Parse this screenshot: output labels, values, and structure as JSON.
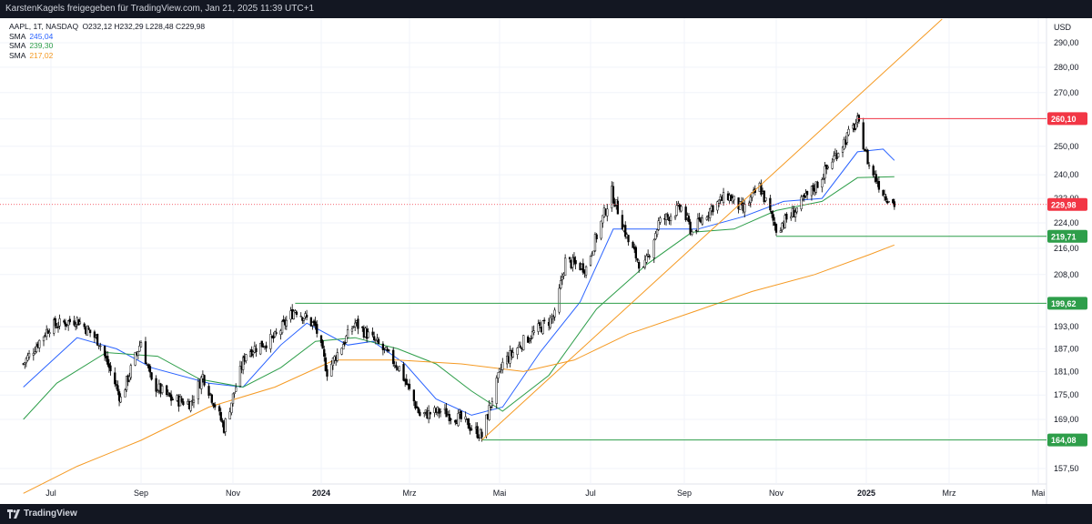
{
  "header": {
    "text": "KarstenKagels freigegeben für TradingView.com, Jan 21, 2025 11:39 UTC+1"
  },
  "footer": {
    "brand": "TradingView"
  },
  "legend": {
    "title": "AAPL, 1T, NASDAQ",
    "ohlc": "O232,12  H232,29  L228,48  C229,98",
    "sma": [
      {
        "label": "SMA",
        "value": "245,04",
        "color": "#2962ff"
      },
      {
        "label": "SMA",
        "value": "239,30",
        "color": "#2e9e4a"
      },
      {
        "label": "SMA",
        "value": "217,02",
        "color": "#f59a23"
      }
    ]
  },
  "chart_data": {
    "type": "candlestick",
    "currency_label": "USD",
    "y_scale": "log",
    "y_ticks": [
      "290,00",
      "280,00",
      "270,00",
      "260,00",
      "250,00",
      "240,00",
      "232,00",
      "224,00",
      "216,00",
      "208,00",
      "199,62",
      "193,00",
      "187,00",
      "181,00",
      "175,00",
      "169,00",
      "164,08",
      "157,50"
    ],
    "x_ticks": [
      "Jul",
      "Sep",
      "Nov",
      "2024",
      "Mrz",
      "Mai",
      "Jul",
      "Sep",
      "Nov",
      "2025",
      "Mrz",
      "Mai"
    ],
    "x_dates": [
      "2023-07-01",
      "2023-09-01",
      "2023-11-01",
      "2024-01-01",
      "2024-03-01",
      "2024-05-01",
      "2024-07-01",
      "2024-09-01",
      "2024-11-01",
      "2025-01-01",
      "2025-03-01",
      "2025-05-01"
    ],
    "current_price": {
      "label": "229,98",
      "value": 229.98,
      "color": "#f23645"
    },
    "horizontal_levels": [
      {
        "value": 260.1,
        "label": "260,10",
        "color": "#f23645",
        "start": "2024-12-26"
      },
      {
        "value": 219.71,
        "label": "219,71",
        "color": "#2e9e4a",
        "start": "2024-11-01"
      },
      {
        "value": 199.62,
        "label": "199,62",
        "color": "#2e9e4a",
        "start": "2023-12-14"
      },
      {
        "value": 164.08,
        "label": "164,08",
        "color": "#2e9e4a",
        "start": "2024-04-19"
      }
    ],
    "trend_line": {
      "color": "#f59a23",
      "from": {
        "date": "2024-04-19",
        "value": 164.08
      },
      "to": {
        "date": "2025-02-24",
        "value": 300
      }
    },
    "price_path": [
      [
        "2023-06-12",
        183
      ],
      [
        "2023-06-30",
        193
      ],
      [
        "2023-07-19",
        195
      ],
      [
        "2023-08-03",
        189
      ],
      [
        "2023-08-18",
        174
      ],
      [
        "2023-09-01",
        189
      ],
      [
        "2023-09-08",
        178
      ],
      [
        "2023-09-21",
        174
      ],
      [
        "2023-10-04",
        173
      ],
      [
        "2023-10-12",
        180
      ],
      [
        "2023-10-26",
        167
      ],
      [
        "2023-11-10",
        186
      ],
      [
        "2023-11-30",
        190
      ],
      [
        "2023-12-14",
        198
      ],
      [
        "2023-12-28",
        193
      ],
      [
        "2024-01-05",
        181
      ],
      [
        "2024-01-24",
        194
      ],
      [
        "2024-02-09",
        188
      ],
      [
        "2024-02-23",
        182
      ],
      [
        "2024-03-08",
        170
      ],
      [
        "2024-03-22",
        171
      ],
      [
        "2024-04-05",
        169
      ],
      [
        "2024-04-19",
        165
      ],
      [
        "2024-05-03",
        183
      ],
      [
        "2024-05-17",
        189
      ],
      [
        "2024-06-07",
        196
      ],
      [
        "2024-06-14",
        212
      ],
      [
        "2024-06-28",
        210
      ],
      [
        "2024-07-15",
        234
      ],
      [
        "2024-07-26",
        218
      ],
      [
        "2024-08-05",
        209
      ],
      [
        "2024-08-15",
        224
      ],
      [
        "2024-08-30",
        229
      ],
      [
        "2024-09-06",
        221
      ],
      [
        "2024-09-19",
        229
      ],
      [
        "2024-09-30",
        233
      ],
      [
        "2024-10-10",
        228
      ],
      [
        "2024-10-21",
        236
      ],
      [
        "2024-11-01",
        222
      ],
      [
        "2024-11-14",
        228
      ],
      [
        "2024-11-29",
        237
      ],
      [
        "2024-12-16",
        251
      ],
      [
        "2024-12-26",
        259
      ],
      [
        "2025-01-03",
        243
      ],
      [
        "2025-01-13",
        234
      ],
      [
        "2025-01-21",
        230
      ]
    ],
    "series": [
      {
        "name": "SMA",
        "value_label": "245,04",
        "color": "#2962ff",
        "points": [
          [
            "2023-06-12",
            177
          ],
          [
            "2023-07-19",
            190
          ],
          [
            "2023-08-15",
            187
          ],
          [
            "2023-09-08",
            182
          ],
          [
            "2023-10-16",
            178
          ],
          [
            "2023-11-08",
            177
          ],
          [
            "2023-12-04",
            188
          ],
          [
            "2023-12-22",
            194
          ],
          [
            "2024-01-19",
            188
          ],
          [
            "2024-02-05",
            189
          ],
          [
            "2024-02-27",
            183
          ],
          [
            "2024-03-19",
            174
          ],
          [
            "2024-04-12",
            170
          ],
          [
            "2024-05-03",
            172
          ],
          [
            "2024-05-28",
            186
          ],
          [
            "2024-06-24",
            200
          ],
          [
            "2024-07-16",
            222
          ],
          [
            "2024-08-12",
            222
          ],
          [
            "2024-09-10",
            222
          ],
          [
            "2024-10-10",
            226
          ],
          [
            "2024-11-06",
            231
          ],
          [
            "2024-12-02",
            232
          ],
          [
            "2024-12-26",
            248
          ],
          [
            "2025-01-13",
            249
          ],
          [
            "2025-01-21",
            245
          ]
        ]
      },
      {
        "name": "SMA",
        "value_label": "239,30",
        "color": "#2e9e4a",
        "points": [
          [
            "2023-06-12",
            169
          ],
          [
            "2023-07-05",
            178
          ],
          [
            "2023-08-08",
            186
          ],
          [
            "2023-09-12",
            185
          ],
          [
            "2023-10-10",
            179
          ],
          [
            "2023-11-08",
            177
          ],
          [
            "2023-12-04",
            182
          ],
          [
            "2023-12-28",
            189
          ],
          [
            "2024-01-24",
            190
          ],
          [
            "2024-02-22",
            187
          ],
          [
            "2024-03-19",
            183
          ],
          [
            "2024-04-12",
            176
          ],
          [
            "2024-05-03",
            171
          ],
          [
            "2024-06-03",
            180
          ],
          [
            "2024-07-05",
            198
          ],
          [
            "2024-08-07",
            211
          ],
          [
            "2024-09-06",
            221
          ],
          [
            "2024-10-04",
            222
          ],
          [
            "2024-11-01",
            228
          ],
          [
            "2024-12-02",
            231
          ],
          [
            "2024-12-26",
            239
          ],
          [
            "2025-01-21",
            239.3
          ]
        ]
      },
      {
        "name": "SMA",
        "value_label": "217,02",
        "color": "#f59a23",
        "points": [
          [
            "2023-06-12",
            152
          ],
          [
            "2023-07-19",
            158
          ],
          [
            "2023-09-01",
            164
          ],
          [
            "2023-10-16",
            172
          ],
          [
            "2023-11-30",
            177
          ],
          [
            "2024-01-10",
            184
          ],
          [
            "2024-02-22",
            184
          ],
          [
            "2024-04-05",
            183
          ],
          [
            "2024-05-17",
            181
          ],
          [
            "2024-06-20",
            184
          ],
          [
            "2024-07-26",
            191
          ],
          [
            "2024-09-06",
            197
          ],
          [
            "2024-10-16",
            203
          ],
          [
            "2024-11-27",
            208
          ],
          [
            "2025-01-03",
            214
          ],
          [
            "2025-01-21",
            217
          ]
        ]
      }
    ]
  }
}
